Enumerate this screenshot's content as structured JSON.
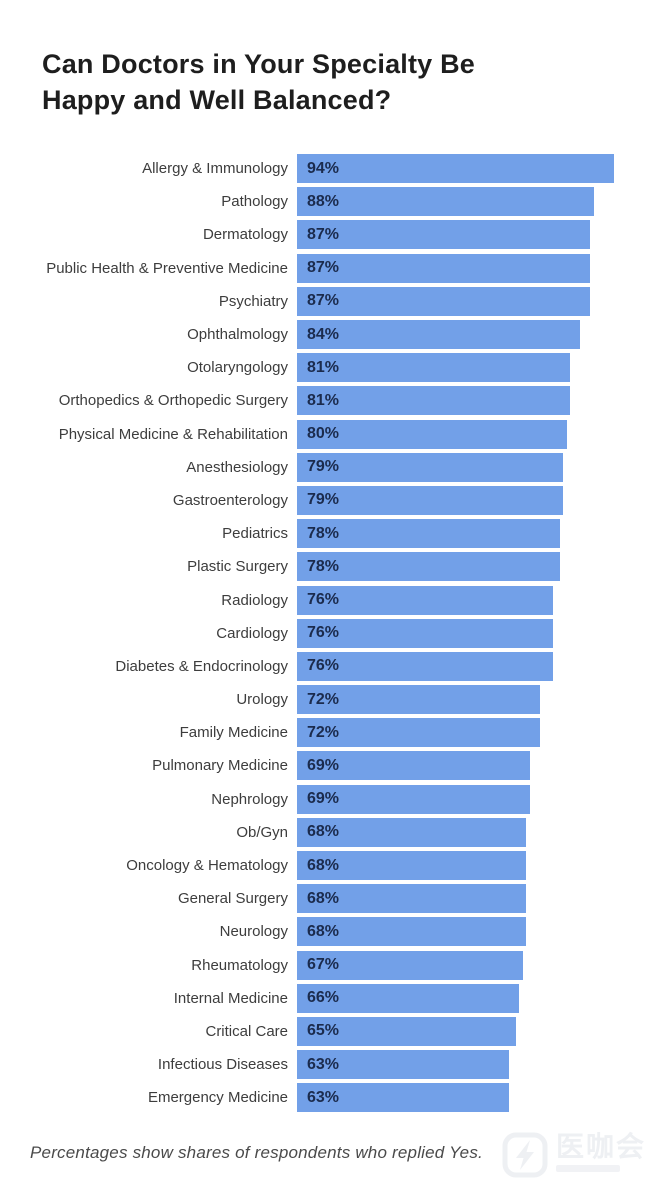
{
  "title": {
    "line1": "Can Doctors in Your Specialty Be",
    "line2": "Happy and Well Balanced?"
  },
  "footnote": "Percentages show shares of respondents who replied Yes.",
  "watermark": {
    "text": "医咖会"
  },
  "colors": {
    "bar_fill": "#72a0e8",
    "value_text": "#1b2b4d",
    "label_text": "#3d3d3d",
    "title_text": "#1e1e1e",
    "footnote_text": "#4a4a4a",
    "background": "#ffffff"
  },
  "chart_data": {
    "type": "bar",
    "orientation": "horizontal",
    "title": "Can Doctors in Your Specialty Be Happy and Well Balanced?",
    "unit": "%",
    "xlim": [
      0,
      100
    ],
    "grid": false,
    "legend": false,
    "value_labels_inside_bars": true,
    "categories": [
      "Allergy & Immunology",
      "Pathology",
      "Dermatology",
      "Public Health & Preventive Medicine",
      "Psychiatry",
      "Ophthalmology",
      "Otolaryngology",
      "Orthopedics & Orthopedic Surgery",
      "Physical Medicine & Rehabilitation",
      "Anesthesiology",
      "Gastroenterology",
      "Pediatrics",
      "Plastic Surgery",
      "Radiology",
      "Cardiology",
      "Diabetes & Endocrinology",
      "Urology",
      "Family Medicine",
      "Pulmonary Medicine",
      "Nephrology",
      "Ob/Gyn",
      "Oncology & Hematology",
      "General Surgery",
      "Neurology",
      "Rheumatology",
      "Internal Medicine",
      "Critical Care",
      "Infectious Diseases",
      "Emergency Medicine"
    ],
    "values": [
      94,
      88,
      87,
      87,
      87,
      84,
      81,
      81,
      80,
      79,
      79,
      78,
      78,
      76,
      76,
      76,
      72,
      72,
      69,
      69,
      68,
      68,
      68,
      68,
      67,
      66,
      65,
      63,
      63
    ]
  }
}
